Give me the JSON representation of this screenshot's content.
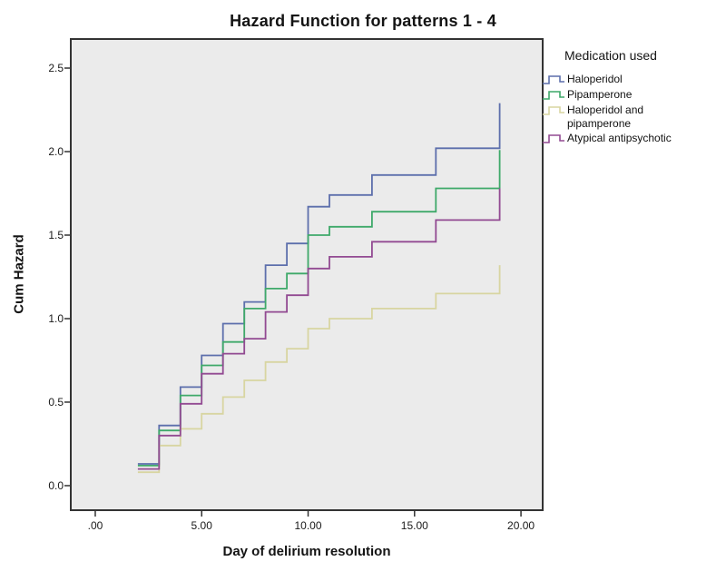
{
  "title": "Hazard Function for patterns 1 - 4",
  "legend": {
    "title": "Medication used"
  },
  "colors": {
    "plot_background": "#ebebeb",
    "frame": "#333333",
    "haloperidol": "#5d6fac",
    "pipamperone": "#3fa96a",
    "haloperidol_and_pipamperone": "#d8d5a1",
    "atypical_antipsychotic": "#924a92"
  },
  "chart_data": {
    "type": "line",
    "line_style": "step-post",
    "title": "Hazard Function for patterns 1 - 4",
    "xlabel": "Day of delirium resolution",
    "ylabel": "Cum Hazard",
    "xlim": [
      -1.15,
      21.02
    ],
    "ylim": [
      -0.147,
      2.674
    ],
    "grid": false,
    "legend_position": "right",
    "legend_title": "Medication used",
    "x_ticks": {
      "values": [
        0,
        5,
        10,
        15,
        20
      ],
      "labels": [
        ".00",
        "5.00",
        "10.00",
        "15.00",
        "20.00"
      ]
    },
    "y_ticks": {
      "values": [
        0,
        0.5,
        1,
        1.5,
        2,
        2.5
      ],
      "labels": [
        "0.0",
        "0.5",
        "1.0",
        "1.5",
        "2.0",
        "2.5"
      ]
    },
    "series": [
      {
        "name": "Haloperidol",
        "color": "#5d6fac",
        "points": [
          [
            2,
            0.13
          ],
          [
            3,
            0.36
          ],
          [
            4,
            0.59
          ],
          [
            5,
            0.78
          ],
          [
            6,
            0.97
          ],
          [
            7,
            1.1
          ],
          [
            8,
            1.32
          ],
          [
            9,
            1.45
          ],
          [
            10,
            1.67
          ],
          [
            11,
            1.74
          ],
          [
            13,
            1.86
          ],
          [
            16,
            2.02
          ],
          [
            19,
            2.29
          ]
        ]
      },
      {
        "name": "Pipamperone",
        "color": "#3fa96a",
        "points": [
          [
            2,
            0.12
          ],
          [
            3,
            0.33
          ],
          [
            4,
            0.54
          ],
          [
            5,
            0.72
          ],
          [
            6,
            0.86
          ],
          [
            7,
            1.06
          ],
          [
            8,
            1.18
          ],
          [
            9,
            1.27
          ],
          [
            10,
            1.5
          ],
          [
            11,
            1.55
          ],
          [
            13,
            1.64
          ],
          [
            16,
            1.78
          ],
          [
            19,
            2.01
          ]
        ]
      },
      {
        "name": "Haloperidol and pipamperone",
        "color": "#d8d5a1",
        "points": [
          [
            2,
            0.08
          ],
          [
            3,
            0.24
          ],
          [
            4,
            0.34
          ],
          [
            5,
            0.43
          ],
          [
            6,
            0.53
          ],
          [
            7,
            0.63
          ],
          [
            8,
            0.74
          ],
          [
            9,
            0.82
          ],
          [
            10,
            0.94
          ],
          [
            11,
            1.0
          ],
          [
            13,
            1.06
          ],
          [
            16,
            1.15
          ],
          [
            19,
            1.32
          ]
        ]
      },
      {
        "name": "Atypical antipsychotic",
        "color": "#924a92",
        "points": [
          [
            2,
            0.1
          ],
          [
            3,
            0.3
          ],
          [
            4,
            0.49
          ],
          [
            5,
            0.67
          ],
          [
            6,
            0.79
          ],
          [
            7,
            0.88
          ],
          [
            8,
            1.04
          ],
          [
            9,
            1.14
          ],
          [
            10,
            1.3
          ],
          [
            11,
            1.37
          ],
          [
            13,
            1.46
          ],
          [
            16,
            1.59
          ],
          [
            19,
            1.78
          ]
        ]
      }
    ]
  }
}
